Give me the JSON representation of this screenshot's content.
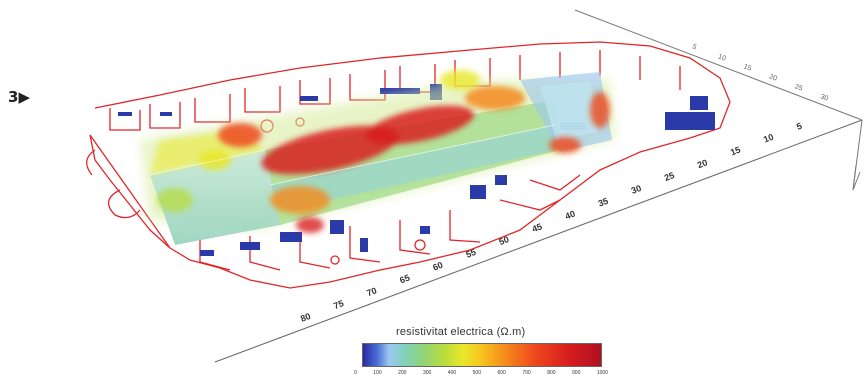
{
  "figure": {
    "label": "3"
  },
  "legend": {
    "title": "resistivitat electrica (Ω.m)",
    "ticks": [
      "0",
      "100",
      "200",
      "300",
      "400",
      "500",
      "600",
      "700",
      "800",
      "900",
      "1000"
    ]
  },
  "front_axis": {
    "ticks": [
      "80",
      "75",
      "70",
      "65",
      "60",
      "55",
      "50",
      "45",
      "40",
      "35",
      "30",
      "25",
      "20",
      "15",
      "10",
      "5"
    ]
  },
  "right_axis": {
    "ticks": [
      "5",
      "10",
      "15",
      "20",
      "25",
      "30"
    ]
  },
  "colors": {
    "plan_outline": "#e0262a",
    "wall_fill": "#2a3aa8",
    "low": "#9ec8f0",
    "mid": "#e8e82a",
    "high": "#d81e1e"
  }
}
